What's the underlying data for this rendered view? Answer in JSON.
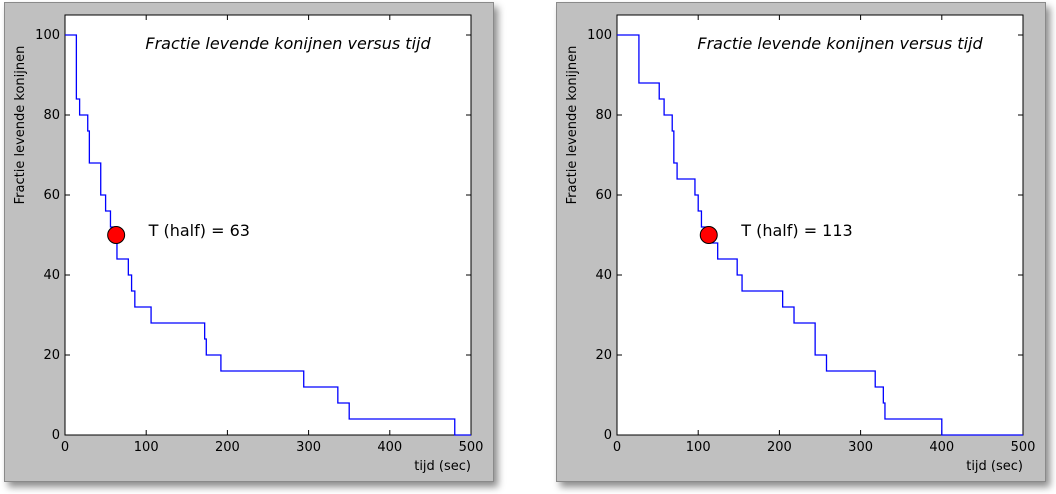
{
  "chart_data": [
    {
      "type": "line",
      "title": "Fractie levende konijnen versus tijd",
      "xlabel": "tijd (sec)",
      "ylabel": "Fractie levende konijnen",
      "xlim": [
        0,
        500
      ],
      "ylim": [
        0,
        105
      ],
      "xticks": [
        0,
        100,
        200,
        300,
        400,
        500
      ],
      "yticks": [
        0,
        20,
        40,
        60,
        80,
        100
      ],
      "grid": false,
      "colors": {
        "line": "#0000ff",
        "marker": "#ff0000",
        "background": "#ffffff",
        "frame": "#c0c0c0"
      },
      "series": [
        {
          "step": "post",
          "x": [
            0,
            14,
            18,
            22,
            28,
            30,
            34,
            44,
            50,
            56,
            60,
            64,
            68,
            78,
            82,
            86,
            88,
            106,
            172,
            174,
            178,
            192,
            294,
            336,
            350,
            480,
            500
          ],
          "y": [
            100,
            84,
            80,
            80,
            76,
            68,
            68,
            60,
            56,
            52,
            48,
            44,
            44,
            40,
            36,
            32,
            32,
            28,
            24,
            20,
            20,
            16,
            12,
            8,
            4,
            0,
            0
          ]
        }
      ],
      "marker": {
        "x": 63,
        "y": 50
      },
      "annotation": {
        "text": "T (half) = 63",
        "x": 103,
        "y": 51
      }
    },
    {
      "type": "line",
      "title": "Fractie levende konijnen versus tijd",
      "xlabel": "tijd (sec)",
      "ylabel": "Fractie levende konijnen",
      "xlim": [
        0,
        500
      ],
      "ylim": [
        0,
        105
      ],
      "xticks": [
        0,
        100,
        200,
        300,
        400,
        500
      ],
      "yticks": [
        0,
        20,
        40,
        60,
        80,
        100
      ],
      "grid": false,
      "colors": {
        "line": "#0000ff",
        "marker": "#ff0000",
        "background": "#ffffff",
        "frame": "#c0c0c0"
      },
      "series": [
        {
          "step": "post",
          "x": [
            0,
            27,
            52,
            58,
            64,
            68,
            70,
            74,
            93,
            96,
            100,
            104,
            106,
            114,
            120,
            122,
            124,
            142,
            148,
            154,
            168,
            176,
            184,
            196,
            204,
            218,
            224,
            244,
            250,
            258,
            286,
            318,
            324,
            328,
            330,
            342,
            372,
            398,
            400,
            500
          ],
          "y": [
            100,
            88,
            84,
            80,
            80,
            76,
            68,
            64,
            64,
            60,
            56,
            52,
            52,
            48,
            48,
            48,
            44,
            44,
            40,
            36,
            36,
            36,
            36,
            36,
            32,
            28,
            28,
            20,
            20,
            16,
            16,
            12,
            12,
            8,
            4,
            4,
            4,
            4,
            0,
            0
          ]
        }
      ],
      "marker": {
        "x": 113,
        "y": 50
      },
      "annotation": {
        "text": "T (half) = 113",
        "x": 153,
        "y": 51
      }
    }
  ]
}
